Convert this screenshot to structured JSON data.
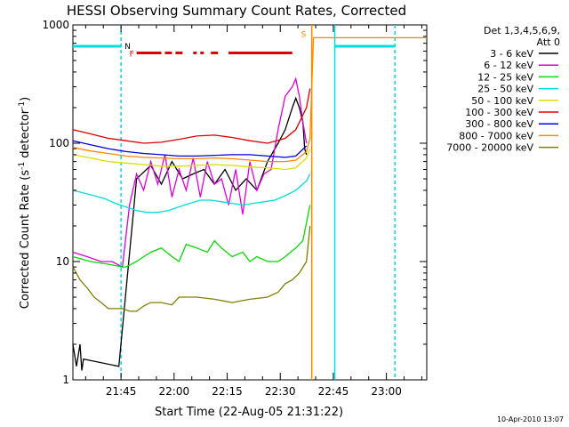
{
  "chart_data": {
    "type": "line",
    "title": "HESSI Observing Summary Count Rates, Corrected",
    "xlabel": "Start Time (22-Aug-05 21:31:22)",
    "ylabel_main": "Corrected Count Rate (s",
    "ylabel_sup1": "-1",
    "ylabel_mid": " detector",
    "ylabel_sup2": "-1",
    "ylabel_end": ")",
    "yscale": "log",
    "ylim": [
      1,
      1000
    ],
    "xlim_minutes": [
      0,
      100
    ],
    "x_ticks": [
      {
        "label": "21:45",
        "value": 13.6
      },
      {
        "label": "22:00",
        "value": 28.6
      },
      {
        "label": "22:15",
        "value": 43.6
      },
      {
        "label": "22:30",
        "value": 58.6
      },
      {
        "label": "22:45",
        "value": 73.6
      },
      {
        "label": "23:00",
        "value": 88.6
      }
    ],
    "y_ticks": [
      {
        "label": "1",
        "value": 1
      },
      {
        "label": "10",
        "value": 10
      },
      {
        "label": "100",
        "value": 100
      },
      {
        "label": "1000",
        "value": 1000
      }
    ],
    "legend": {
      "header1": "Det 1,3,4,5,6,9,",
      "header2": "Att 0",
      "placement": "right"
    },
    "series": [
      {
        "name": "3 - 6 keV",
        "color": "#000000",
        "x": [
          0,
          1,
          2,
          2.5,
          3,
          13,
          18,
          22,
          25,
          28,
          31,
          34,
          37,
          40,
          43,
          46,
          49,
          52,
          55,
          58,
          60,
          62,
          63,
          64,
          65,
          65.5,
          66
        ],
        "y": [
          2,
          1.3,
          2,
          1.2,
          1.5,
          1.3,
          50,
          65,
          45,
          70,
          50,
          55,
          60,
          45,
          60,
          40,
          50,
          40,
          70,
          100,
          130,
          200,
          240,
          200,
          150,
          90,
          80
        ]
      },
      {
        "name": "6 - 12 keV",
        "color": "#dd00dd",
        "x": [
          0,
          4,
          8,
          11,
          14,
          16,
          18,
          20,
          22,
          24,
          26,
          28,
          30,
          32,
          34,
          36,
          38,
          40,
          42,
          44,
          46,
          48,
          50,
          52,
          54,
          56,
          58,
          60,
          62,
          63,
          64,
          65,
          66
        ],
        "y": [
          12,
          11,
          10,
          10,
          9,
          30,
          55,
          40,
          70,
          45,
          80,
          35,
          60,
          40,
          75,
          35,
          70,
          45,
          50,
          30,
          60,
          25,
          70,
          40,
          55,
          60,
          130,
          250,
          300,
          350,
          250,
          150,
          100
        ]
      },
      {
        "name": "12 - 25 keV",
        "color": "#00dd00",
        "x": [
          0,
          5,
          10,
          14,
          15,
          18,
          20,
          22,
          25,
          28,
          30,
          32,
          35,
          38,
          40,
          42,
          45,
          48,
          50,
          52,
          55,
          58,
          60,
          63,
          65,
          67
        ],
        "y": [
          11,
          10,
          9.5,
          9,
          9,
          10,
          11,
          12,
          13,
          11,
          10,
          14,
          13,
          12,
          15,
          13,
          11,
          12,
          10,
          11,
          10,
          10,
          11,
          13,
          15,
          30
        ]
      },
      {
        "name": "25 - 50 keV",
        "color": "#00dddd",
        "x": [
          0,
          3,
          6,
          9,
          12,
          15,
          18,
          21,
          24,
          27,
          30,
          33,
          36,
          39,
          42,
          45,
          48,
          51,
          54,
          57,
          60,
          63,
          66,
          67
        ],
        "y": [
          40,
          38,
          36,
          34,
          31,
          29,
          27,
          26,
          26,
          27,
          29,
          31,
          33,
          33,
          32,
          31,
          30,
          31,
          32,
          33,
          36,
          40,
          48,
          55
        ]
      },
      {
        "name": "50 - 100 keV",
        "color": "#dddd00",
        "x": [
          0,
          5,
          10,
          15,
          20,
          25,
          30,
          35,
          40,
          45,
          50,
          55,
          60,
          63,
          66,
          67
        ],
        "y": [
          80,
          75,
          70,
          68,
          66,
          64,
          64,
          65,
          66,
          65,
          63,
          62,
          60,
          62,
          75,
          90
        ]
      },
      {
        "name": "100 - 300 keV",
        "color": "#dd0000",
        "x": [
          0,
          5,
          10,
          15,
          20,
          25,
          30,
          35,
          40,
          45,
          50,
          55,
          60,
          63,
          66,
          67
        ],
        "y": [
          130,
          120,
          110,
          105,
          100,
          102,
          108,
          115,
          117,
          112,
          105,
          100,
          110,
          130,
          200,
          290
        ]
      },
      {
        "name": "300 - 800 keV",
        "color": "#0000dd",
        "x": [
          0,
          5,
          10,
          15,
          20,
          25,
          30,
          35,
          40,
          45,
          50,
          55,
          60,
          63,
          66
        ],
        "y": [
          105,
          97,
          90,
          85,
          82,
          80,
          78,
          78,
          79,
          80,
          80,
          78,
          76,
          78,
          95
        ]
      },
      {
        "name": "800 - 7000 keV",
        "color": "#ff8800",
        "x": [
          0,
          5,
          10,
          15,
          20,
          25,
          30,
          35,
          40,
          45,
          50,
          55,
          60,
          63,
          66,
          67,
          68,
          80,
          100
        ],
        "y": [
          92,
          86,
          82,
          78,
          76,
          75,
          74,
          74,
          75,
          74,
          72,
          70,
          70,
          72,
          85,
          110,
          780,
          780,
          780
        ]
      },
      {
        "name": "7000 - 20000 keV",
        "color": "#808000",
        "x": [
          0,
          2,
          4,
          6,
          8,
          10,
          12,
          14,
          16,
          18,
          20,
          22,
          25,
          28,
          30,
          35,
          40,
          45,
          50,
          55,
          58,
          60,
          62,
          64,
          66,
          67
        ],
        "y": [
          9,
          7,
          6,
          5,
          4.5,
          4,
          4,
          4,
          3.8,
          3.8,
          4.2,
          4.5,
          4.5,
          4.3,
          5,
          5,
          4.8,
          4.5,
          4.8,
          5,
          5.5,
          6.5,
          7,
          8,
          10,
          20
        ]
      }
    ],
    "attenuator_bar": {
      "label": "F",
      "color": "#dd0000",
      "y": 580,
      "x_segments": [
        [
          18,
          25
        ],
        [
          26,
          28
        ],
        [
          29,
          31
        ],
        [
          34,
          35
        ],
        [
          36,
          37
        ],
        [
          39,
          41
        ],
        [
          44,
          62
        ]
      ]
    },
    "night_bars": {
      "label": "N",
      "label2": "S",
      "color": "#00dddd",
      "y": 660,
      "segments": [
        [
          0,
          13.6
        ],
        [
          74,
          91
        ]
      ]
    },
    "saa_bar": {
      "color": "#ff8800"
    },
    "vlines": [
      {
        "x": 13.6,
        "color": "#00dddd",
        "dashed": true
      },
      {
        "x": 67.5,
        "color": "#ff8800",
        "dashed": false
      },
      {
        "x": 74,
        "color": "#00dddd",
        "dashed": false
      },
      {
        "x": 91,
        "color": "#00dddd",
        "dashed": true
      }
    ],
    "timestamp": "10-Apr-2010 13:07",
    "grid": false
  }
}
